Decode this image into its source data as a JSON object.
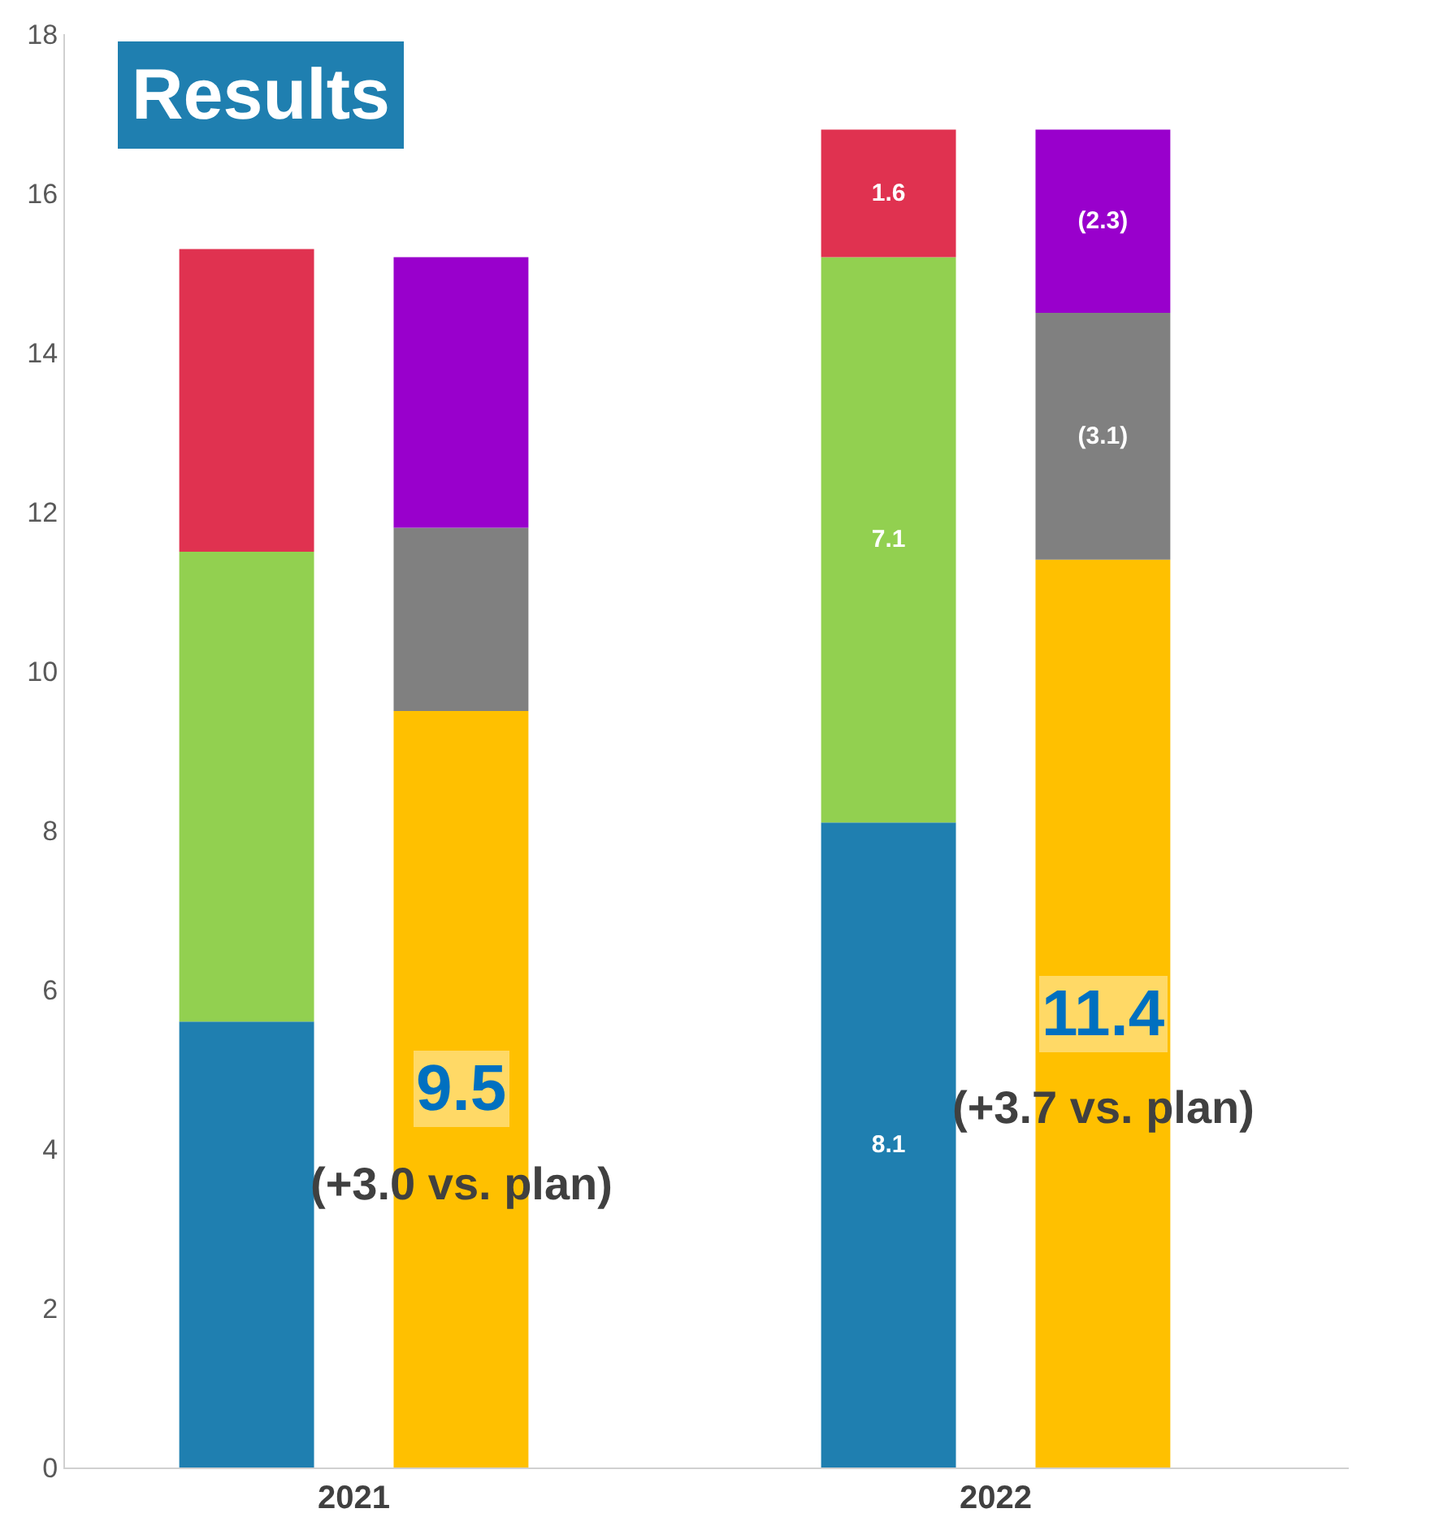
{
  "chart_data": {
    "type": "bar",
    "title": "Results",
    "categories": [
      "2021",
      "2022"
    ],
    "series": [
      {
        "color": "#1f7fb0",
        "base": [
          0,
          0
        ],
        "values": [
          5.6,
          8.1
        ],
        "value_labels": [
          null,
          "8.1"
        ]
      },
      {
        "color": "#92d050",
        "base": [
          5.6,
          8.1
        ],
        "values": [
          5.9,
          7.1
        ],
        "value_labels": [
          null,
          "7.1"
        ]
      },
      {
        "color": "#e03250",
        "base": [
          11.5,
          15.2
        ],
        "values": [
          3.8,
          1.6
        ],
        "value_labels": [
          null,
          "1.6"
        ]
      },
      {
        "color": "#ffc000",
        "base": [
          0,
          0
        ],
        "values": [
          9.5,
          11.4
        ],
        "value_labels": [
          "9.5",
          "11.4"
        ]
      },
      {
        "color": "#808080",
        "base": [
          9.5,
          11.4
        ],
        "values": [
          2.3,
          3.1
        ],
        "value_labels": [
          null,
          "(3.1)"
        ]
      },
      {
        "color": "#9900cc",
        "base": [
          11.8,
          14.5
        ],
        "values": [
          3.4,
          2.3
        ],
        "value_labels": [
          null,
          "(2.3)"
        ]
      }
    ],
    "annotations": [
      "(+3.0 vs. plan)",
      "(+3.7 vs. plan)"
    ],
    "ylim": [
      0,
      18
    ],
    "yticks": [
      0,
      2,
      4,
      6,
      8,
      10,
      12,
      14,
      16,
      18
    ]
  }
}
